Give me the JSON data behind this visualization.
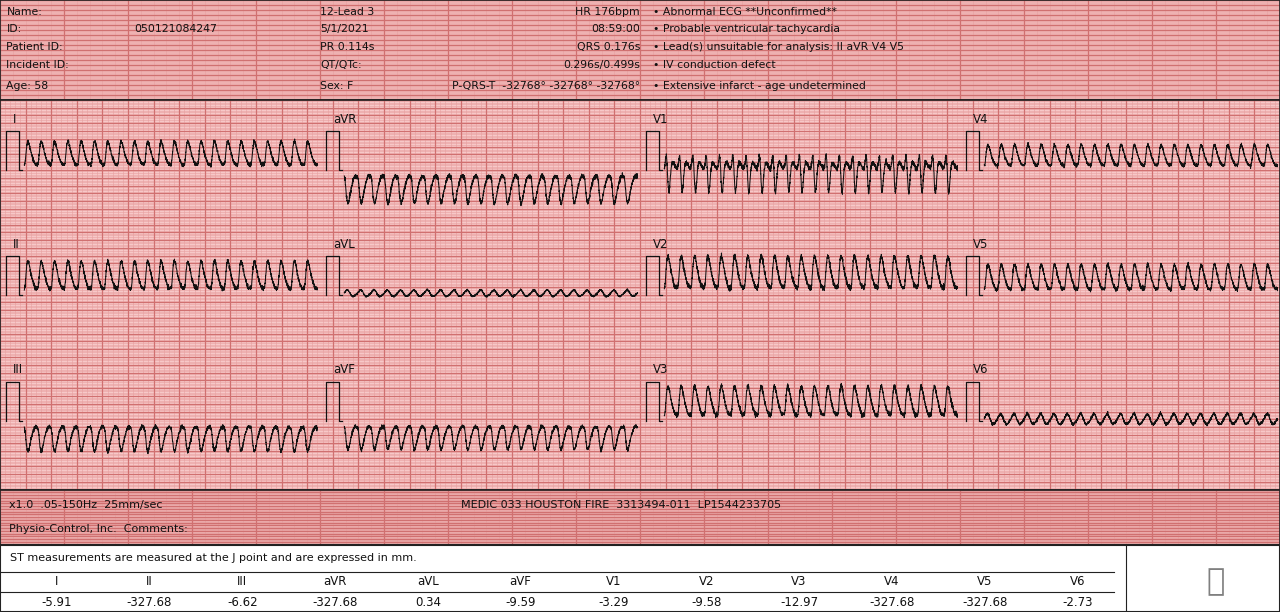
{
  "bg_color": "#f7c8c8",
  "grid_minor_color": "#e8a0a0",
  "grid_major_color": "#d07070",
  "border_color": "#222222",
  "text_color": "#111111",
  "ecg_color": "#111111",
  "bottom_bg": "#ffffff",
  "footer_bg": "#f7c8c8",
  "header_rows": [
    {
      "col0": "Name:",
      "col1": "",
      "col2": "12-Lead 3",
      "col3": "HR 176bpm",
      "col4": "• Abnormal ECG **Unconfirmed**"
    },
    {
      "col0": "ID:",
      "col1": "050121084247",
      "col2": "5/1/2021",
      "col3": "08:59:00",
      "col4": "• Probable ventricular tachycardia"
    },
    {
      "col0": "Patient ID:",
      "col1": "",
      "col2": "PR 0.114s",
      "col3": "QRS 0.176s",
      "col4": "• Lead(s) unsuitable for analysis: II aVR V4 V5"
    },
    {
      "col0": "Incident ID:",
      "col1": "",
      "col2": "QT/QTc:",
      "col3": "0.296s/0.499s",
      "col4": "• IV conduction defect"
    },
    {
      "col0": "Age: 58",
      "col1": "",
      "col2": "Sex: F",
      "col3": "P-QRS-T  -32768° -32768° -32768°",
      "col4": "• Extensive infarct - age undetermined"
    }
  ],
  "lead_row1": [
    "I",
    "aVR",
    "V1",
    "V4"
  ],
  "lead_row2": [
    "II",
    "aVL",
    "V2",
    "V5"
  ],
  "lead_row3": [
    "III",
    "aVF",
    "V3",
    "V6"
  ],
  "footer_left1": "x1.0  .05-150Hz  25mm/sec",
  "footer_right1": "MEDIC 033 HOUSTON FIRE  3313494-011  LP1544233705",
  "footer_left2": "Physio-Control, Inc.  Comments:",
  "st_note": "ST measurements are measured at the J point and are expressed in mm.",
  "st_labels": [
    "I",
    "II",
    "III",
    "aVR",
    "aVL",
    "aVF",
    "V1",
    "V2",
    "V3",
    "V4",
    "V5",
    "V6"
  ],
  "st_values": [
    "-5.91",
    "-327.68",
    "-6.62",
    "-327.68",
    "0.34",
    "-9.59",
    "-3.29",
    "-9.58",
    "-12.97",
    "-327.68",
    "-327.68",
    "-2.73"
  ],
  "figsize": [
    12.8,
    6.12
  ],
  "dpi": 100
}
